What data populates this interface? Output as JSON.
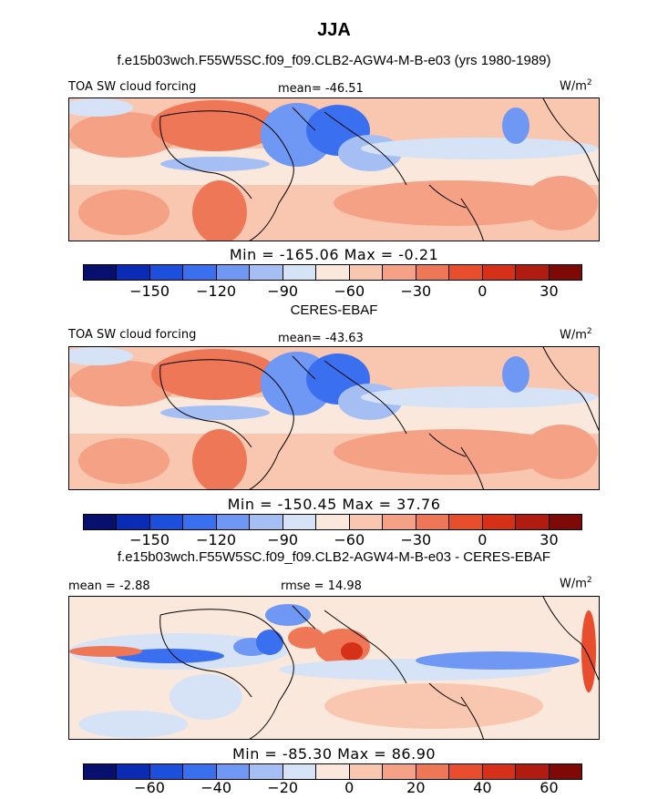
{
  "title": "JJA",
  "colors": {
    "scale": [
      "#08106e",
      "#0a2bb4",
      "#1b4fdc",
      "#3a6ff0",
      "#6e98f4",
      "#a5bff5",
      "#d6e3f7",
      "#fbe8dc",
      "#f9c7af",
      "#f4a185",
      "#ee7758",
      "#e84d2d",
      "#d63019",
      "#b01c10",
      "#7d0a06"
    ],
    "land_line": "#000000"
  },
  "panels": [
    {
      "subtitle": "f.e15b03wch.F55W5SC.f09_f09.CLB2-AGW4-M-B-e03 (yrs 1980-1989)",
      "left_label": "TOA SW cloud forcing",
      "center_label": "mean= -46.51",
      "units": "W/m",
      "units_sup": "2",
      "stats": "Min = -165.06  Max =  -0.21",
      "ticks": [
        "-150",
        "-120",
        "-90",
        "-60",
        "-30",
        "0",
        "30"
      ]
    },
    {
      "subtitle": "CERES-EBAF",
      "left_label": "TOA SW cloud forcing",
      "center_label": "mean= -43.63",
      "units": "W/m",
      "units_sup": "2",
      "stats": "Min = -150.45  Max =  37.76",
      "ticks": [
        "-150",
        "-120",
        "-90",
        "-60",
        "-30",
        "0",
        "30"
      ]
    },
    {
      "subtitle": "f.e15b03wch.F55W5SC.f09_f09.CLB2-AGW4-M-B-e03 - CERES-EBAF",
      "left_label": "mean =  -2.88",
      "center_label": "rmse =  14.98",
      "units": "W/m",
      "units_sup": "2",
      "stats": "Min = -85.30  Max =  86.90",
      "ticks": [
        "-60",
        "-40",
        "-20",
        "0",
        "20",
        "40",
        "60"
      ]
    }
  ],
  "chart_data": [
    {
      "type": "heatmap",
      "title": "JJA",
      "subtitle": "f.e15b03wch.F55W5SC.f09_f09.CLB2-AGW4-M-B-e03 (yrs 1980-1989)",
      "variable": "TOA SW cloud forcing",
      "units": "W/m2",
      "mean": -46.51,
      "min": -165.06,
      "max": -0.21,
      "colorbar_levels": [
        -180,
        -165,
        -150,
        -135,
        -120,
        -105,
        -90,
        -75,
        -60,
        -45,
        -30,
        -15,
        0,
        15,
        30,
        45
      ],
      "colorbar_tick_labels": [
        -150,
        -120,
        -90,
        -60,
        -30,
        0,
        30
      ]
    },
    {
      "type": "heatmap",
      "subtitle": "CERES-EBAF",
      "variable": "TOA SW cloud forcing",
      "units": "W/m2",
      "mean": -43.63,
      "min": -150.45,
      "max": 37.76,
      "colorbar_levels": [
        -180,
        -165,
        -150,
        -135,
        -120,
        -105,
        -90,
        -75,
        -60,
        -45,
        -30,
        -15,
        0,
        15,
        30,
        45
      ],
      "colorbar_tick_labels": [
        -150,
        -120,
        -90,
        -60,
        -30,
        0,
        30
      ]
    },
    {
      "type": "heatmap",
      "subtitle": "f.e15b03wch.F55W5SC.f09_f09.CLB2-AGW4-M-B-e03 - CERES-EBAF",
      "units": "W/m2",
      "mean": -2.88,
      "rmse": 14.98,
      "min": -85.3,
      "max": 86.9,
      "colorbar_levels": [
        -80,
        -70,
        -60,
        -50,
        -40,
        -30,
        -20,
        -10,
        0,
        10,
        20,
        30,
        40,
        50,
        60,
        70,
        80
      ],
      "colorbar_tick_labels": [
        -60,
        -40,
        -20,
        0,
        20,
        40,
        60
      ]
    }
  ]
}
